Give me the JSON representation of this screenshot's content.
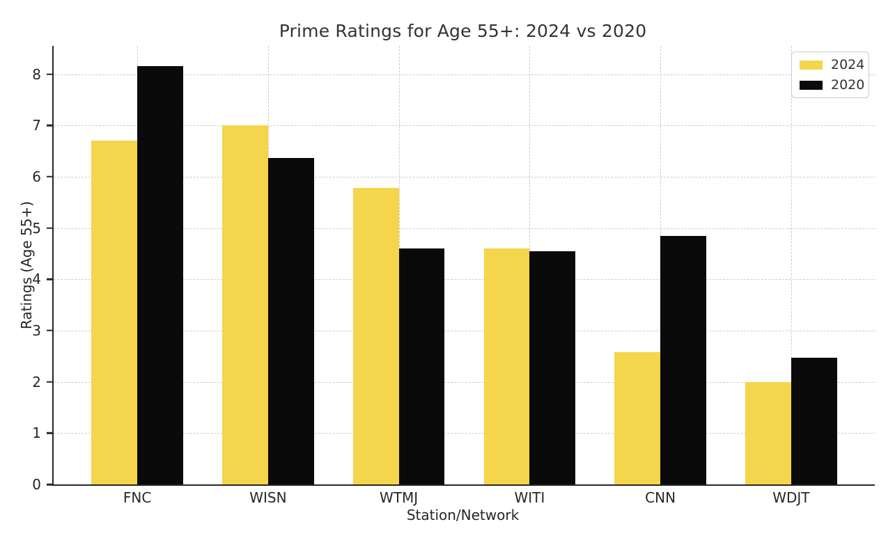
{
  "chart_data": {
    "type": "bar",
    "title": "Prime Ratings for Age 55+: 2024 vs 2020",
    "xlabel": "Station/Network",
    "ylabel": "Ratings (Age 55+)",
    "categories": [
      "FNC",
      "WISN",
      "WTMJ",
      "WITI",
      "CNN",
      "WDJT"
    ],
    "series": [
      {
        "name": "2024",
        "color": "#F5D54C",
        "values": [
          6.7,
          7.0,
          5.78,
          4.6,
          2.58,
          2.0
        ]
      },
      {
        "name": "2020",
        "color": "#0a0a0a",
        "values": [
          8.15,
          6.37,
          4.6,
          4.55,
          4.85,
          2.47
        ]
      }
    ],
    "ylim": [
      0,
      8.55
    ],
    "xlim": [
      -0.64,
      5.64
    ],
    "yticks": [
      0,
      1,
      2,
      3,
      4,
      5,
      6,
      7,
      8
    ],
    "bar_width": 0.35,
    "grid": "dashed-both-axes",
    "gridline_color": "#cccccc",
    "background_color": "#ffffff",
    "text_color": "#333333",
    "legend_position": "upper right",
    "legend_labels": [
      "2024",
      "2020"
    ]
  }
}
